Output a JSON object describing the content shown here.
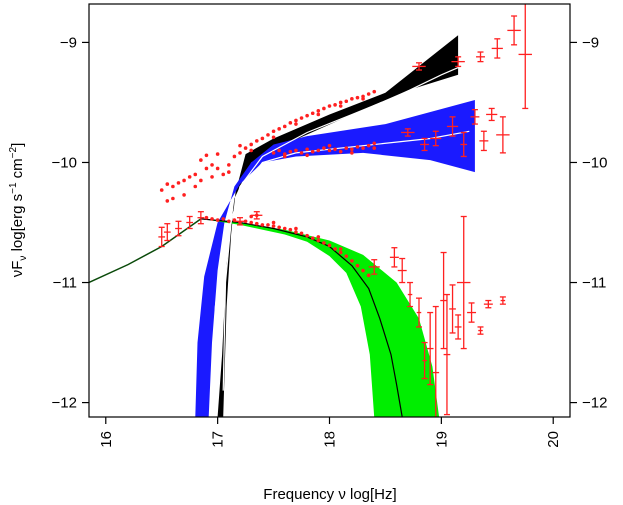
{
  "chart_data": {
    "type": "scatter",
    "xlabel": "Frequency ν log[Hz]",
    "ylabel": "νF",
    "ylabel_sub": "ν",
    "ylabel_units": " log[erg s",
    "ylabel_s_exp": "−1",
    "ylabel_cm": " cm",
    "ylabel_cm_exp": "−2",
    "ylabel_close": "]",
    "xlim": [
      15.85,
      20.15
    ],
    "ylim": [
      -12.12,
      -8.68
    ],
    "x_ticks": [
      16,
      17,
      18,
      19,
      20
    ],
    "x_tick_labels": [
      "16",
      "17",
      "18",
      "19",
      "20"
    ],
    "y_ticks": [
      -9,
      -10,
      -11,
      -12
    ],
    "y_tick_labels": [
      "−9",
      "−10",
      "−11",
      "−12"
    ],
    "grid": false,
    "legend": "none",
    "colors": {
      "data": "#ff2020",
      "black_band": "#000000",
      "blue_band": "#1a1aff",
      "green_band": "#00ee00",
      "model_curve": "#000000",
      "model_line_left": "#0a4a0a",
      "fit_line": "#ffffff"
    },
    "bands": [
      {
        "color": "black_band",
        "upper": [
          [
            17.05,
            -12.12
          ],
          [
            17.08,
            -11.2
          ],
          [
            17.12,
            -10.6
          ],
          [
            17.16,
            -10.25
          ],
          [
            17.25,
            -9.93
          ],
          [
            17.5,
            -9.8
          ],
          [
            18,
            -9.6
          ],
          [
            18.5,
            -9.42
          ],
          [
            19.15,
            -8.94
          ]
        ],
        "lower": [
          [
            17.0,
            -12.12
          ],
          [
            17.04,
            -11.6
          ],
          [
            17.08,
            -10.85
          ],
          [
            17.15,
            -10.3
          ],
          [
            17.3,
            -10.0
          ],
          [
            17.6,
            -9.85
          ],
          [
            18.2,
            -9.6
          ],
          [
            18.7,
            -9.4
          ],
          [
            19.15,
            -9.27
          ]
        ]
      },
      {
        "color": "blue_band",
        "upper": [
          [
            16.92,
            -12.12
          ],
          [
            16.95,
            -11.5
          ],
          [
            17.0,
            -10.9
          ],
          [
            17.06,
            -10.5
          ],
          [
            17.15,
            -10.2
          ],
          [
            17.3,
            -10.0
          ],
          [
            17.5,
            -9.85
          ],
          [
            17.8,
            -9.78
          ],
          [
            18.5,
            -9.68
          ],
          [
            19.3,
            -9.48
          ]
        ],
        "lower": [
          [
            16.8,
            -12.12
          ],
          [
            16.82,
            -11.5
          ],
          [
            16.88,
            -10.95
          ],
          [
            17.0,
            -10.5
          ],
          [
            17.2,
            -10.18
          ],
          [
            17.4,
            -10.0
          ],
          [
            17.7,
            -9.95
          ],
          [
            18.3,
            -9.92
          ],
          [
            18.9,
            -9.98
          ],
          [
            19.3,
            -10.08
          ]
        ]
      },
      {
        "color": "green_band",
        "upper": [
          [
            16.85,
            -10.47
          ],
          [
            17.2,
            -10.5
          ],
          [
            17.6,
            -10.56
          ],
          [
            18.0,
            -10.65
          ],
          [
            18.3,
            -10.77
          ],
          [
            18.6,
            -11.0
          ],
          [
            18.8,
            -11.3
          ],
          [
            18.92,
            -11.7
          ],
          [
            18.98,
            -12.12
          ]
        ],
        "lower": [
          [
            16.85,
            -10.47
          ],
          [
            17.2,
            -10.52
          ],
          [
            17.6,
            -10.6
          ],
          [
            17.8,
            -10.66
          ],
          [
            18.0,
            -10.78
          ],
          [
            18.15,
            -10.92
          ],
          [
            18.28,
            -11.2
          ],
          [
            18.36,
            -11.6
          ],
          [
            18.4,
            -12.12
          ]
        ]
      }
    ],
    "model_curve": [
      [
        16.85,
        -10.47
      ],
      [
        17.2,
        -10.5
      ],
      [
        17.5,
        -10.55
      ],
      [
        17.8,
        -10.62
      ],
      [
        18.0,
        -10.7
      ],
      [
        18.2,
        -10.86
      ],
      [
        18.35,
        -11.05
      ],
      [
        18.45,
        -11.3
      ],
      [
        18.55,
        -11.6
      ],
      [
        18.6,
        -11.85
      ],
      [
        18.65,
        -12.12
      ]
    ],
    "model_line_left": [
      [
        15.85,
        -11.0
      ],
      [
        16.2,
        -10.85
      ],
      [
        16.5,
        -10.7
      ],
      [
        16.85,
        -10.47
      ]
    ],
    "fit_lines": [
      [
        [
          17.05,
          -11.9
        ],
        [
          17.07,
          -11.0
        ],
        [
          17.12,
          -10.5
        ],
        [
          17.2,
          -10.2
        ],
        [
          17.4,
          -9.95
        ],
        [
          17.8,
          -9.75
        ],
        [
          18.2,
          -9.6
        ],
        [
          18.6,
          -9.45
        ],
        [
          19.0,
          -9.27
        ],
        [
          19.2,
          -9.19
        ]
      ],
      [
        [
          16.95,
          -11.9
        ],
        [
          16.98,
          -11.2
        ],
        [
          17.05,
          -10.7
        ],
        [
          17.2,
          -10.25
        ],
        [
          17.4,
          -10.0
        ],
        [
          17.7,
          -9.92
        ],
        [
          18.3,
          -9.86
        ],
        [
          18.9,
          -9.8
        ],
        [
          19.25,
          -9.74
        ]
      ]
    ],
    "series": [
      {
        "marker": "dot",
        "points": [
          [
            16.5,
            -10.23
          ],
          [
            16.55,
            -10.18
          ],
          [
            16.6,
            -10.2
          ],
          [
            16.65,
            -10.17
          ],
          [
            16.7,
            -10.15
          ],
          [
            16.75,
            -10.12
          ],
          [
            16.8,
            -10.1
          ],
          [
            16.85,
            -10.15
          ],
          [
            16.9,
            -10.05
          ],
          [
            16.95,
            -10.02
          ],
          [
            17.0,
            -10.05
          ],
          [
            17.05,
            -10.1
          ],
          [
            17.1,
            -10.02
          ],
          [
            17.15,
            -9.95
          ],
          [
            17.2,
            -9.92
          ],
          [
            17.25,
            -9.88
          ],
          [
            17.3,
            -9.85
          ],
          [
            17.35,
            -9.82
          ],
          [
            17.4,
            -9.8
          ],
          [
            17.45,
            -9.77
          ],
          [
            17.5,
            -9.74
          ],
          [
            17.55,
            -9.72
          ],
          [
            17.6,
            -9.7
          ],
          [
            17.65,
            -9.67
          ],
          [
            17.7,
            -9.65
          ],
          [
            17.75,
            -9.63
          ],
          [
            17.8,
            -9.61
          ],
          [
            17.85,
            -9.59
          ],
          [
            17.9,
            -9.57
          ],
          [
            17.95,
            -9.55
          ],
          [
            18.0,
            -9.53
          ],
          [
            18.05,
            -9.52
          ],
          [
            18.1,
            -9.5
          ],
          [
            18.15,
            -9.49
          ],
          [
            18.2,
            -9.47
          ],
          [
            18.25,
            -9.46
          ],
          [
            18.3,
            -9.45
          ],
          [
            18.35,
            -9.43
          ],
          [
            18.4,
            -9.41
          ],
          [
            16.6,
            -10.3
          ],
          [
            16.7,
            -10.27
          ],
          [
            16.8,
            -10.2
          ],
          [
            16.95,
            -10.12
          ],
          [
            17.1,
            -10.08
          ],
          [
            17.3,
            -9.9
          ],
          [
            17.5,
            -9.79
          ],
          [
            17.7,
            -9.68
          ],
          [
            17.9,
            -9.6
          ],
          [
            18.1,
            -9.53
          ],
          [
            18.3,
            -9.47
          ],
          [
            16.85,
            -9.98
          ],
          [
            16.9,
            -9.94
          ],
          [
            17.0,
            -9.93
          ],
          [
            17.2,
            -9.86
          ],
          [
            16.55,
            -10.32
          ]
        ]
      },
      {
        "marker": "dot",
        "points": [
          [
            17.5,
            -9.92
          ],
          [
            17.55,
            -9.9
          ],
          [
            17.6,
            -9.93
          ],
          [
            17.65,
            -9.91
          ],
          [
            17.7,
            -9.9
          ],
          [
            17.75,
            -9.92
          ],
          [
            17.8,
            -9.89
          ],
          [
            17.85,
            -9.91
          ],
          [
            17.9,
            -9.9
          ],
          [
            17.95,
            -9.88
          ],
          [
            18.0,
            -9.9
          ],
          [
            18.05,
            -9.89
          ],
          [
            18.1,
            -9.91
          ],
          [
            18.15,
            -9.88
          ],
          [
            18.2,
            -9.89
          ],
          [
            18.25,
            -9.87
          ],
          [
            18.3,
            -9.88
          ],
          [
            18.35,
            -9.86
          ],
          [
            18.4,
            -9.88
          ],
          [
            17.6,
            -9.95
          ],
          [
            17.8,
            -9.94
          ],
          [
            18.0,
            -9.86
          ],
          [
            18.2,
            -9.92
          ],
          [
            18.4,
            -9.84
          ]
        ]
      },
      {
        "marker": "dot",
        "points": [
          [
            16.9,
            -10.46
          ],
          [
            16.95,
            -10.47
          ],
          [
            17.0,
            -10.48
          ],
          [
            17.05,
            -10.47
          ],
          [
            17.1,
            -10.49
          ],
          [
            17.15,
            -10.48
          ],
          [
            17.2,
            -10.5
          ],
          [
            17.25,
            -10.49
          ],
          [
            17.3,
            -10.5
          ],
          [
            17.35,
            -10.51
          ],
          [
            17.4,
            -10.52
          ],
          [
            17.45,
            -10.52
          ],
          [
            17.5,
            -10.53
          ],
          [
            17.55,
            -10.54
          ],
          [
            17.6,
            -10.55
          ],
          [
            17.65,
            -10.56
          ],
          [
            17.7,
            -10.58
          ],
          [
            17.75,
            -10.59
          ],
          [
            17.8,
            -10.61
          ],
          [
            17.85,
            -10.63
          ],
          [
            17.9,
            -10.65
          ],
          [
            17.95,
            -10.67
          ],
          [
            18.0,
            -10.69
          ],
          [
            18.05,
            -10.72
          ],
          [
            18.1,
            -10.75
          ],
          [
            18.15,
            -10.78
          ],
          [
            18.2,
            -10.82
          ],
          [
            18.25,
            -10.86
          ],
          [
            18.3,
            -10.9
          ],
          [
            18.35,
            -10.94
          ],
          [
            17.3,
            -10.45
          ],
          [
            17.35,
            -10.44
          ],
          [
            17.5,
            -10.5
          ],
          [
            17.7,
            -10.55
          ],
          [
            17.9,
            -10.62
          ],
          [
            18.1,
            -10.72
          ]
        ]
      },
      {
        "marker": "cross",
        "points": [
          {
            "x": 16.5,
            "y": -10.62,
            "xerr": 0.03,
            "yerr": 0.08
          },
          {
            "x": 16.55,
            "y": -10.58,
            "xerr": 0.03,
            "yerr": 0.07
          },
          {
            "x": 16.65,
            "y": -10.55,
            "xerr": 0.03,
            "yerr": 0.06
          },
          {
            "x": 16.75,
            "y": -10.5,
            "xerr": 0.03,
            "yerr": 0.05
          },
          {
            "x": 16.85,
            "y": -10.46,
            "xerr": 0.03,
            "yerr": 0.05
          },
          {
            "x": 17.2,
            "y": -10.49,
            "xerr": 0.05,
            "yerr": 0.03
          },
          {
            "x": 17.35,
            "y": -10.44,
            "xerr": 0.05,
            "yerr": 0.03
          },
          {
            "x": 18.4,
            "y": -10.87,
            "xerr": 0.05,
            "yerr": 0.06
          },
          {
            "x": 18.58,
            "y": -10.79,
            "xerr": 0.04,
            "yerr": 0.08
          },
          {
            "x": 18.65,
            "y": -10.9,
            "xerr": 0.04,
            "yerr": 0.1
          },
          {
            "x": 18.72,
            "y": -11.1,
            "xerr": 0.02,
            "yerr": 0.1
          },
          {
            "x": 18.8,
            "y": -11.25,
            "xerr": 0.02,
            "yerr": 0.12
          },
          {
            "x": 18.85,
            "y": -11.65,
            "xerr": 0.02,
            "yerr": 0.15
          },
          {
            "x": 18.9,
            "y": -11.55,
            "xerr": 0.03,
            "yerr": 0.3
          },
          {
            "x": 18.95,
            "y": -11.75,
            "xerr": 0.03,
            "yerr": 0.55
          },
          {
            "x": 19.02,
            "y": -11.15,
            "xerr": 0.03,
            "yerr": 0.4
          },
          {
            "x": 19.05,
            "y": -11.6,
            "xerr": 0.03,
            "yerr": 0.5
          },
          {
            "x": 19.1,
            "y": -11.22,
            "xerr": 0.03,
            "yerr": 0.2
          },
          {
            "x": 19.15,
            "y": -11.37,
            "xerr": 0.03,
            "yerr": 0.1
          },
          {
            "x": 19.2,
            "y": -11.0,
            "xerr": 0.06,
            "yerr": 0.55
          },
          {
            "x": 19.27,
            "y": -11.25,
            "xerr": 0.04,
            "yerr": 0.08
          },
          {
            "x": 19.35,
            "y": -11.4,
            "xerr": 0.02,
            "yerr": 0.03
          },
          {
            "x": 19.42,
            "y": -11.18,
            "xerr": 0.04,
            "yerr": 0.03
          },
          {
            "x": 19.55,
            "y": -11.15,
            "xerr": 0.02,
            "yerr": 0.03
          },
          {
            "x": 18.8,
            "y": -9.2,
            "xerr": 0.06,
            "yerr": 0.03
          },
          {
            "x": 19.15,
            "y": -9.16,
            "xerr": 0.06,
            "yerr": 0.04
          },
          {
            "x": 19.35,
            "y": -9.12,
            "xerr": 0.04,
            "yerr": 0.04
          },
          {
            "x": 19.5,
            "y": -9.05,
            "xerr": 0.05,
            "yerr": 0.08
          },
          {
            "x": 19.65,
            "y": -8.9,
            "xerr": 0.06,
            "yerr": 0.12
          },
          {
            "x": 19.75,
            "y": -9.1,
            "xerr": 0.06,
            "yerr": 0.45
          },
          {
            "x": 18.7,
            "y": -9.75,
            "xerr": 0.06,
            "yerr": 0.03
          },
          {
            "x": 18.85,
            "y": -9.85,
            "xerr": 0.04,
            "yerr": 0.05
          },
          {
            "x": 18.95,
            "y": -9.8,
            "xerr": 0.05,
            "yerr": 0.06
          },
          {
            "x": 19.1,
            "y": -9.7,
            "xerr": 0.05,
            "yerr": 0.08
          },
          {
            "x": 19.2,
            "y": -9.85,
            "xerr": 0.03,
            "yerr": 0.1
          },
          {
            "x": 19.3,
            "y": -9.62,
            "xerr": 0.04,
            "yerr": 0.06
          },
          {
            "x": 19.38,
            "y": -9.82,
            "xerr": 0.04,
            "yerr": 0.08
          },
          {
            "x": 19.45,
            "y": -9.6,
            "xerr": 0.05,
            "yerr": 0.05
          },
          {
            "x": 19.55,
            "y": -9.77,
            "xerr": 0.06,
            "yerr": 0.15
          }
        ]
      }
    ]
  }
}
